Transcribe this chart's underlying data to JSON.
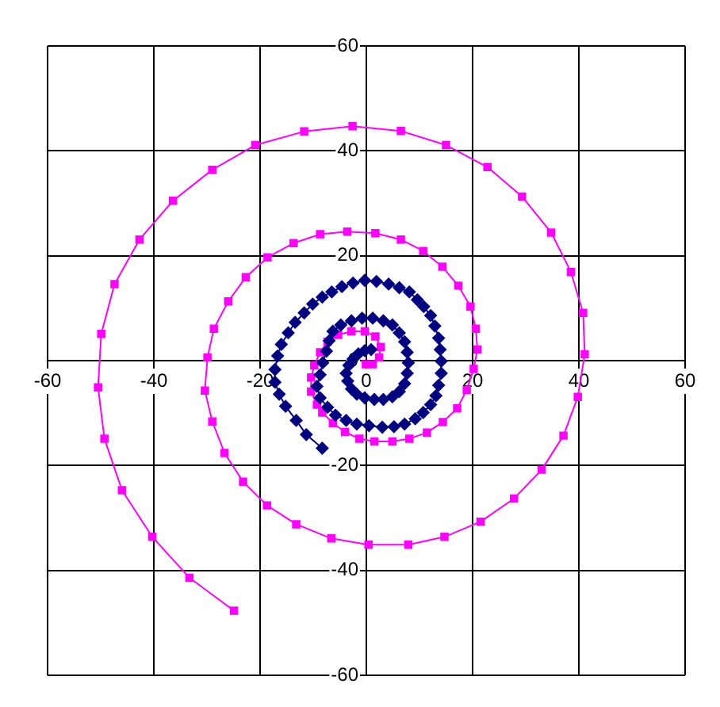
{
  "chart_data": {
    "type": "line",
    "xlim": [
      -60,
      60
    ],
    "ylim": [
      -60,
      60
    ],
    "xticks": [
      -60,
      -40,
      -20,
      0,
      20,
      40,
      60
    ],
    "yticks": [
      -60,
      -40,
      -20,
      0,
      20,
      40,
      60
    ],
    "grid": true,
    "legend": false,
    "line_style": "solid",
    "series": [
      {
        "color": "#000080",
        "marker": "diamond",
        "x": [
          0.9,
          -0.3,
          -1.5,
          -2.5,
          -3.3,
          -3.8,
          -3.5,
          -2.8,
          -1.8,
          -0.3,
          1.5,
          3.2,
          4.9,
          6.2,
          7.2,
          7.7,
          7.9,
          7.7,
          7.2,
          6.2,
          4.9,
          3.2,
          1.2,
          -0.8,
          -2.8,
          -4.8,
          -6.3,
          -7.0,
          -7.5,
          -8.2,
          -8.7,
          -9.3,
          -8.7,
          -7.3,
          -5.8,
          -3.8,
          -1.8,
          0.5,
          3.0,
          5.2,
          7.2,
          9.2,
          10.7,
          12.1,
          13.1,
          13.6,
          14.1,
          14.1,
          13.9,
          13.6,
          12.9,
          12.1,
          10.8,
          9.6,
          8.1,
          6.2,
          4.2,
          1.9,
          -0.3,
          -2.5,
          -4.6,
          -6.5,
          -8.3,
          -10.1,
          -11.7,
          -13.4,
          -14.7,
          -16.0,
          -16.7,
          -17.2,
          -17.2,
          -16.4,
          -15.2,
          -13.2,
          -11.3,
          -8.3
        ],
        "values": [
          2.1,
          1.9,
          1.3,
          0.3,
          -0.9,
          -2.4,
          -3.9,
          -5.4,
          -6.4,
          -7.1,
          -7.4,
          -7.4,
          -6.9,
          -5.9,
          -4.4,
          -2.4,
          -0.4,
          1.6,
          3.6,
          5.3,
          6.8,
          7.6,
          8.1,
          8.1,
          7.6,
          6.8,
          5.6,
          3.8,
          1.8,
          -0.4,
          -2.7,
          -4.9,
          -7.1,
          -8.9,
          -10.4,
          -11.4,
          -12.1,
          -12.4,
          -12.7,
          -12.6,
          -12.1,
          -11.1,
          -9.9,
          -8.4,
          -6.7,
          -4.7,
          -2.4,
          -0.1,
          2.1,
          4.3,
          6.6,
          8.6,
          10.3,
          11.6,
          13.1,
          13.9,
          14.6,
          15.1,
          15.3,
          14.8,
          14.1,
          13.1,
          12.1,
          10.8,
          9.1,
          7.3,
          5.3,
          3.1,
          0.9,
          -1.7,
          -4.1,
          -6.4,
          -8.7,
          -11.4,
          -14.1,
          -16.7
        ]
      },
      {
        "color": "#ff00ff",
        "marker": "square",
        "x": [
          -0.1,
          1.2,
          2.4,
          2.7,
          1.7,
          -0.3,
          -2.8,
          -5.3,
          -7.3,
          -8.7,
          -9.8,
          -10.4,
          -10.4,
          -9.3,
          -8.3,
          -6.3,
          -4.0,
          -1.3,
          1.5,
          4.9,
          8.1,
          11.4,
          14.4,
          17.1,
          18.9,
          20.2,
          20.9,
          20.6,
          19.6,
          17.3,
          14.3,
          10.7,
          6.5,
          1.7,
          -3.6,
          -8.7,
          -13.7,
          -18.6,
          -22.7,
          -26.0,
          -28.7,
          -29.9,
          -30.4,
          -29.0,
          -26.7,
          -23.2,
          -18.7,
          -13.2,
          -6.6,
          0.4,
          7.9,
          14.7,
          21.5,
          27.8,
          33.0,
          37.1,
          39.8,
          41.1,
          40.8,
          38.5,
          34.8,
          29.3,
          22.8,
          15.0,
          6.5,
          -2.6,
          -11.7,
          -20.9,
          -29.0,
          -36.4,
          -42.7,
          -47.4,
          -49.9,
          -50.5,
          -49.3,
          -46.0,
          -40.3,
          -33.3,
          -24.9
        ],
        "values": [
          -0.7,
          -0.7,
          0.6,
          2.6,
          4.6,
          5.6,
          5.6,
          4.9,
          3.6,
          1.6,
          -0.9,
          -3.2,
          -5.9,
          -8.4,
          -9.9,
          -11.9,
          -13.6,
          -14.9,
          -15.4,
          -15.4,
          -14.9,
          -13.7,
          -11.7,
          -9.1,
          -5.6,
          -1.6,
          2.1,
          6.1,
          10.3,
          14.3,
          17.9,
          20.9,
          23.1,
          24.3,
          24.6,
          24.1,
          22.4,
          19.7,
          15.9,
          11.3,
          6.1,
          0.6,
          -5.7,
          -11.6,
          -17.6,
          -23.1,
          -27.6,
          -31.2,
          -33.9,
          -35.1,
          -35.1,
          -33.6,
          -30.7,
          -26.3,
          -20.8,
          -14.3,
          -6.9,
          1.2,
          9.1,
          16.9,
          24.4,
          31.3,
          36.9,
          41.1,
          43.8,
          44.7,
          43.7,
          41.1,
          36.4,
          30.5,
          23.1,
          14.6,
          5.1,
          -5.1,
          -14.9,
          -24.7,
          -33.6,
          -41.4,
          -47.7
        ]
      }
    ]
  }
}
